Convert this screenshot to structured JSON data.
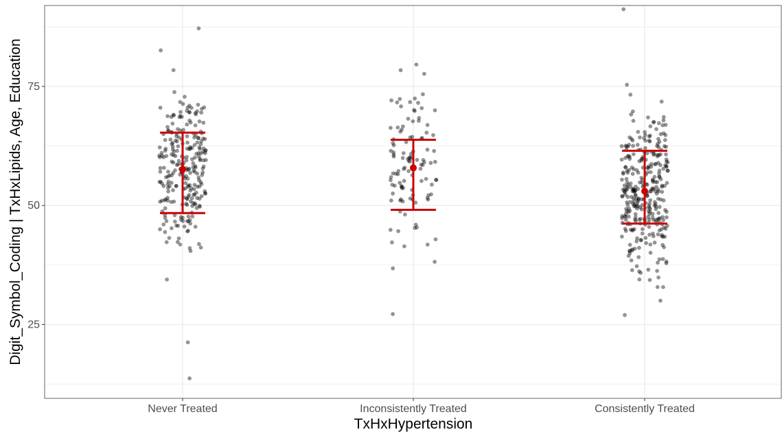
{
  "chart_data": {
    "type": "scatter",
    "subtype": "jittered strip plot with mean and ±1 SD error bars",
    "xlabel": "TxHxHypertension",
    "ylabel": "Digit_Symbol_Coding | TxHxLipids, Age, Education",
    "categories": [
      "Never Treated",
      "Inconsistently Treated",
      "Consistently Treated"
    ],
    "y_ticks": [
      25,
      50,
      75
    ],
    "y_tick_labels": [
      "25",
      "50",
      "75"
    ],
    "ylim": [
      9.5,
      92
    ],
    "grid": true,
    "legend": "none",
    "summary": [
      {
        "category": "Never Treated",
        "mean": 57.6,
        "lower": 48.4,
        "upper": 65.3
      },
      {
        "category": "Inconsistently Treated",
        "mean": 57.9,
        "lower": 49.1,
        "upper": 63.8
      },
      {
        "category": "Consistently Treated",
        "mean": 53.0,
        "lower": 46.2,
        "upper": 61.5
      }
    ],
    "point_groups": [
      {
        "category": "Never Treated",
        "count": 260,
        "min": 13.7,
        "max": 87.2,
        "center": 57.6,
        "sd": 9.0
      },
      {
        "category": "Inconsistently Treated",
        "count": 110,
        "min": 27.2,
        "max": 79.6,
        "center": 57.9,
        "sd": 8.5
      },
      {
        "category": "Consistently Treated",
        "count": 330,
        "min": 27.0,
        "max": 91.2,
        "center": 53.0,
        "sd": 8.0
      }
    ],
    "colors": {
      "points": "#000000",
      "summary": "#cc0000",
      "grid": "#ebebeb",
      "panel_border": "#7f7f7f"
    }
  }
}
